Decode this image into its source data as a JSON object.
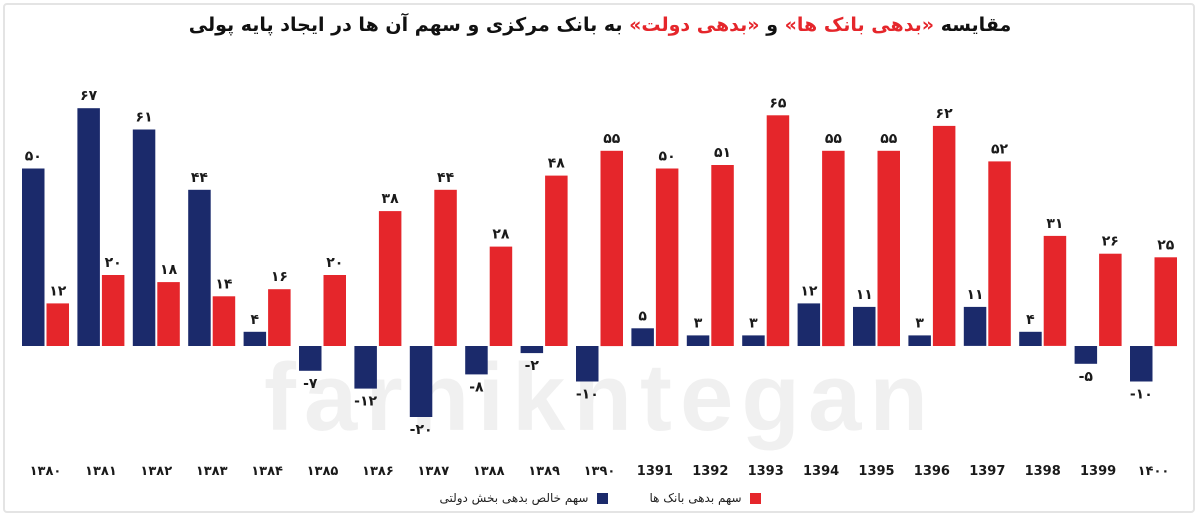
{
  "title": {
    "part1": "مقایسه ",
    "part2": "«بدهی بانک ها»",
    "part3": " و ",
    "part4": "«بدهی دولت»",
    "part5": " به بانک مرکزی و سهم آن ها در ایجاد پایه پولی"
  },
  "watermark": "farhikhtegan",
  "colors": {
    "government": "#1b2a6b",
    "banks": "#e5262b"
  },
  "chart_data": {
    "type": "bar",
    "categories": [
      "۱۳۸۰",
      "۱۳۸۱",
      "۱۳۸۲",
      "۱۳۸۳",
      "۱۳۸۴",
      "۱۳۸۵",
      "۱۳۸۶",
      "۱۳۸۷",
      "۱۳۸۸",
      "۱۳۸۹",
      "۱۳۹۰",
      "1391",
      "1392",
      "1393",
      "1394",
      "1395",
      "1396",
      "1397",
      "1398",
      "1399",
      "۱۴۰۰"
    ],
    "series": [
      {
        "name": "سهم خالص بدهی بخش دولتی",
        "values": [
          50,
          67,
          61,
          44,
          4,
          -7,
          -12,
          -20,
          -8,
          -2,
          -10,
          5,
          3,
          3,
          12,
          11,
          3,
          11,
          4,
          -5,
          -10
        ],
        "labels": [
          "۵۰",
          "۶۷",
          "۶۱",
          "۴۴",
          "۴",
          "-۷",
          "-۱۲",
          "-۲۰",
          "-۸",
          "-۲",
          "-۱۰",
          "۵",
          "۳",
          "۳",
          "۱۲",
          "۱۱",
          "۳",
          "۱۱",
          "۴",
          "-۵",
          "-۱۰"
        ]
      },
      {
        "name": "سهم بدهی بانک ها",
        "values": [
          12,
          20,
          18,
          14,
          16,
          20,
          38,
          44,
          28,
          48,
          55,
          50,
          51,
          65,
          55,
          55,
          62,
          52,
          31,
          26,
          25
        ],
        "labels": [
          "۱۲",
          "۲۰",
          "۱۸",
          "۱۴",
          "۱۶",
          "۲۰",
          "۳۸",
          "۴۴",
          "۲۸",
          "۴۸",
          "۵۵",
          "۵۰",
          "۵۱",
          "۶۵",
          "۵۵",
          "۵۵",
          "۶۲",
          "۵۲",
          "۳۱",
          "۲۶",
          "۲۵"
        ]
      }
    ],
    "ylim": [
      -20,
      67
    ],
    "grid": false,
    "legend": "bottom-center"
  }
}
